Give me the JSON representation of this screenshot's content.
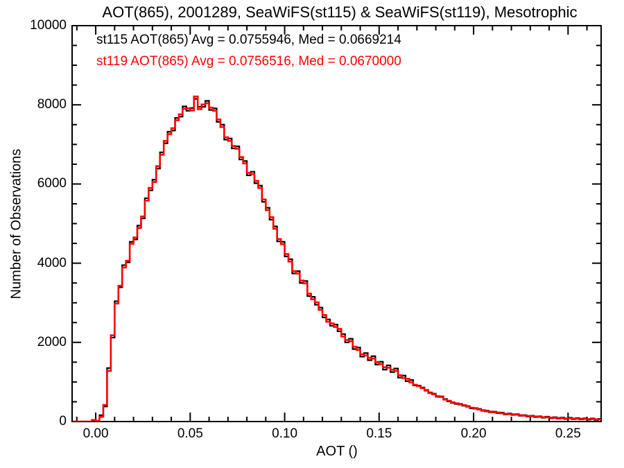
{
  "chart_data": {
    "type": "histogram-step",
    "title": "AOT(865), 2001289, SeaWiFS(st115) & SeaWiFS(st119), Mesotrophic",
    "xlabel": "AOT ()",
    "ylabel": "Number of Observations",
    "xlim": [
      -0.0125,
      0.2675
    ],
    "ylim": [
      0,
      10000
    ],
    "grid": false,
    "legend_position": "top-left-inside",
    "axis_color": "#000000",
    "background_color": "#ffffff",
    "x_major_ticks": [
      {
        "value": 0.0,
        "label": "0.00"
      },
      {
        "value": 0.05,
        "label": "0.05"
      },
      {
        "value": 0.1,
        "label": "0.10"
      },
      {
        "value": 0.15,
        "label": "0.15"
      },
      {
        "value": 0.2,
        "label": "0.20"
      },
      {
        "value": 0.25,
        "label": "0.25"
      }
    ],
    "x_minor_step": 0.01,
    "y_major_ticks": [
      {
        "value": 0,
        "label": "0"
      },
      {
        "value": 2000,
        "label": "2000"
      },
      {
        "value": 4000,
        "label": "4000"
      },
      {
        "value": 6000,
        "label": "6000"
      },
      {
        "value": 8000,
        "label": "8000"
      },
      {
        "value": 10000,
        "label": "10000"
      }
    ],
    "y_minor_step": 500,
    "bin_start": -0.012,
    "bin_width": 0.002,
    "series": [
      {
        "name": "st115",
        "color": "#000000",
        "legend": "st115 AOT(865) Avg = 0.0755946, Med = 0.0669214",
        "avg": 0.0755946,
        "med": 0.0669214,
        "values": [
          0,
          0,
          0,
          0,
          0,
          30,
          20,
          160,
          380,
          1350,
          2120,
          3040,
          3390,
          3950,
          4020,
          4540,
          4600,
          4950,
          5130,
          5640,
          5840,
          6110,
          6390,
          6800,
          7030,
          7320,
          7350,
          7670,
          7700,
          7960,
          7850,
          7920,
          8150,
          7950,
          7950,
          8100,
          7870,
          7910,
          7570,
          7500,
          7120,
          7150,
          6900,
          6950,
          6620,
          6580,
          6220,
          6310,
          6020,
          5960,
          5550,
          5400,
          5100,
          4930,
          4550,
          4540,
          4170,
          4100,
          3740,
          3800,
          3500,
          3550,
          3170,
          3150,
          2950,
          2880,
          2630,
          2580,
          2420,
          2450,
          2280,
          2210,
          2000,
          2090,
          1830,
          1870,
          1640,
          1730,
          1550,
          1650,
          1440,
          1510,
          1310,
          1420,
          1250,
          1340,
          1110,
          1160,
          1020,
          1050,
          915,
          910,
          860,
          780,
          735,
          705,
          625,
          635,
          570,
          510,
          485,
          445,
          445,
          400,
          390,
          335,
          325,
          320,
          273,
          273,
          237,
          251,
          215,
          223,
          181,
          205,
          169,
          187,
          146,
          162,
          127,
          148,
          114,
          132,
          95,
          123,
          83,
          110,
          77,
          101,
          66,
          96,
          61,
          87,
          56,
          81,
          47,
          78,
          41,
          68
        ]
      },
      {
        "name": "st119",
        "color": "#ff0000",
        "legend": "st119 AOT(865) Avg = 0.0756516, Med = 0.0670000",
        "avg": 0.0756516,
        "med": 0.067,
        "values": [
          0,
          0,
          0,
          0,
          0,
          40,
          15,
          120,
          420,
          1280,
          2180,
          2980,
          3430,
          3890,
          4060,
          4490,
          4650,
          4890,
          5180,
          5580,
          5900,
          6050,
          6450,
          6740,
          7090,
          7260,
          7410,
          7610,
          7760,
          7900,
          7910,
          7860,
          8210,
          7890,
          8010,
          8040,
          7930,
          7850,
          7630,
          7440,
          7180,
          7090,
          6960,
          6890,
          6680,
          6520,
          6280,
          6250,
          6080,
          5900,
          5610,
          5340,
          5160,
          4870,
          4610,
          4480,
          4230,
          4040,
          3800,
          3740,
          3560,
          3490,
          3230,
          3090,
          3010,
          2820,
          2690,
          2520,
          2480,
          2390,
          2340,
          2150,
          2060,
          2030,
          1890,
          1810,
          1700,
          1670,
          1610,
          1590,
          1500,
          1450,
          1370,
          1360,
          1310,
          1280,
          1170,
          1100,
          1080,
          990,
          930,
          895,
          845,
          795,
          720,
          690,
          640,
          620,
          555,
          525,
          470,
          460,
          430,
          415,
          375,
          350,
          340,
          305,
          288,
          258,
          252,
          236,
          230,
          208,
          196,
          190,
          184,
          172,
          161,
          147,
          142,
          133,
          129,
          117,
          110,
          108,
          98,
          95,
          92,
          86,
          81,
          81,
          76,
          72,
          71,
          66,
          62,
          63,
          56,
          53
        ]
      }
    ]
  }
}
